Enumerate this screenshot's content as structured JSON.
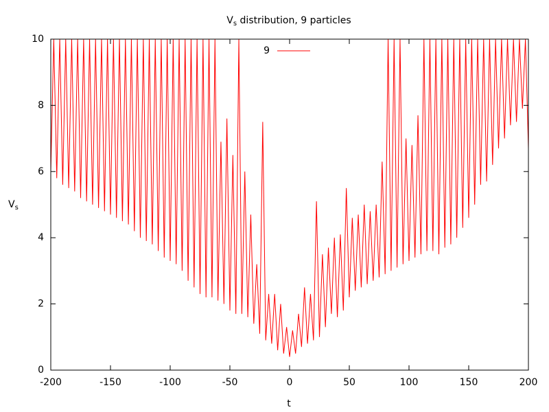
{
  "chart_data": {
    "type": "line",
    "title_parts": [
      "V",
      "s",
      " distribution, 9 particles"
    ],
    "xlabel": "t",
    "ylabel_parts": [
      "V",
      "s"
    ],
    "xlim": [
      -200,
      200
    ],
    "xticks": [
      -200,
      -150,
      -100,
      -50,
      0,
      50,
      100,
      150,
      200
    ],
    "ylim": [
      0,
      10
    ],
    "yticks": [
      0,
      2,
      4,
      6,
      8,
      10
    ],
    "grid": false,
    "legend": "top-center",
    "x": [
      -200,
      -197.5,
      -195,
      -192.5,
      -190,
      -187.5,
      -185,
      -182.5,
      -180,
      -177.5,
      -175,
      -172.5,
      -170,
      -167.5,
      -165,
      -162.5,
      -160,
      -157.5,
      -155,
      -152.5,
      -150,
      -147.5,
      -145,
      -142.5,
      -140,
      -137.5,
      -135,
      -132.5,
      -130,
      -127.5,
      -125,
      -122.5,
      -120,
      -117.5,
      -115,
      -112.5,
      -110,
      -107.5,
      -105,
      -102.5,
      -100,
      -97.5,
      -95,
      -92.5,
      -90,
      -87.5,
      -85,
      -82.5,
      -80,
      -77.5,
      -75,
      -72.5,
      -70,
      -67.5,
      -65,
      -62.5,
      -60,
      -57.5,
      -55,
      -52.5,
      -50,
      -47.5,
      -45,
      -42.5,
      -40,
      -37.5,
      -35,
      -32.5,
      -30,
      -27.5,
      -25,
      -22.5,
      -20,
      -17.5,
      -15,
      -12.5,
      -10,
      -7.5,
      -5,
      -2.5,
      0,
      2.5,
      5,
      7.5,
      10,
      12.5,
      15,
      17.5,
      20,
      22.5,
      25,
      27.5,
      30,
      32.5,
      35,
      37.5,
      40,
      42.5,
      45,
      47.5,
      50,
      52.5,
      55,
      57.5,
      60,
      62.5,
      65,
      67.5,
      70,
      72.5,
      75,
      77.5,
      80,
      82.5,
      85,
      87.5,
      90,
      92.5,
      95,
      97.5,
      100,
      102.5,
      105,
      107.5,
      110,
      112.5,
      115,
      117.5,
      120,
      122.5,
      125,
      127.5,
      130,
      132.5,
      135,
      137.5,
      140,
      142.5,
      145,
      147.5,
      150,
      152.5,
      155,
      157.5,
      160,
      162.5,
      165,
      167.5,
      170,
      172.5,
      175,
      177.5,
      180,
      182.5,
      185,
      187.5,
      190,
      192.5,
      195,
      197.5,
      200
    ],
    "series": [
      {
        "name": "9",
        "color": "#ff0000",
        "values": [
          6.0,
          10,
          5.8,
          10,
          5.6,
          10,
          5.5,
          10,
          5.4,
          10,
          5.2,
          10,
          5.1,
          10,
          5.0,
          10,
          4.9,
          10,
          4.8,
          10,
          4.7,
          10,
          4.6,
          10,
          4.5,
          10,
          4.4,
          10,
          4.2,
          10,
          4.0,
          10,
          3.9,
          10,
          3.8,
          10,
          3.6,
          10,
          3.4,
          10,
          3.3,
          10,
          3.2,
          10,
          3.0,
          10,
          2.7,
          10,
          2.5,
          10,
          2.3,
          10,
          2.2,
          10,
          2.2,
          10,
          2.1,
          6.9,
          2.0,
          7.6,
          1.8,
          6.5,
          1.7,
          10,
          1.7,
          6.0,
          1.6,
          4.7,
          1.4,
          3.2,
          1.1,
          7.5,
          0.9,
          2.3,
          0.8,
          2.3,
          0.6,
          2.0,
          0.5,
          1.3,
          0.4,
          1.2,
          0.5,
          1.7,
          0.7,
          2.5,
          0.8,
          2.3,
          0.9,
          5.1,
          1.0,
          3.5,
          1.3,
          3.7,
          1.7,
          4.0,
          1.6,
          4.1,
          1.8,
          5.5,
          2.2,
          4.6,
          2.4,
          4.7,
          2.5,
          5.0,
          2.6,
          4.8,
          2.7,
          5.0,
          2.8,
          6.3,
          2.9,
          10,
          3.0,
          10,
          3.1,
          10,
          3.2,
          7.0,
          3.3,
          6.8,
          3.4,
          7.7,
          3.5,
          10,
          3.6,
          10,
          3.6,
          10,
          3.5,
          10,
          3.7,
          10,
          3.8,
          10,
          4.0,
          10,
          4.3,
          10,
          4.6,
          10,
          5.0,
          10,
          5.6,
          10,
          5.7,
          10,
          6.2,
          10,
          6.7,
          10,
          7.0,
          10,
          7.4,
          10,
          7.5,
          10,
          7.9,
          10,
          6.7
        ]
      }
    ]
  }
}
